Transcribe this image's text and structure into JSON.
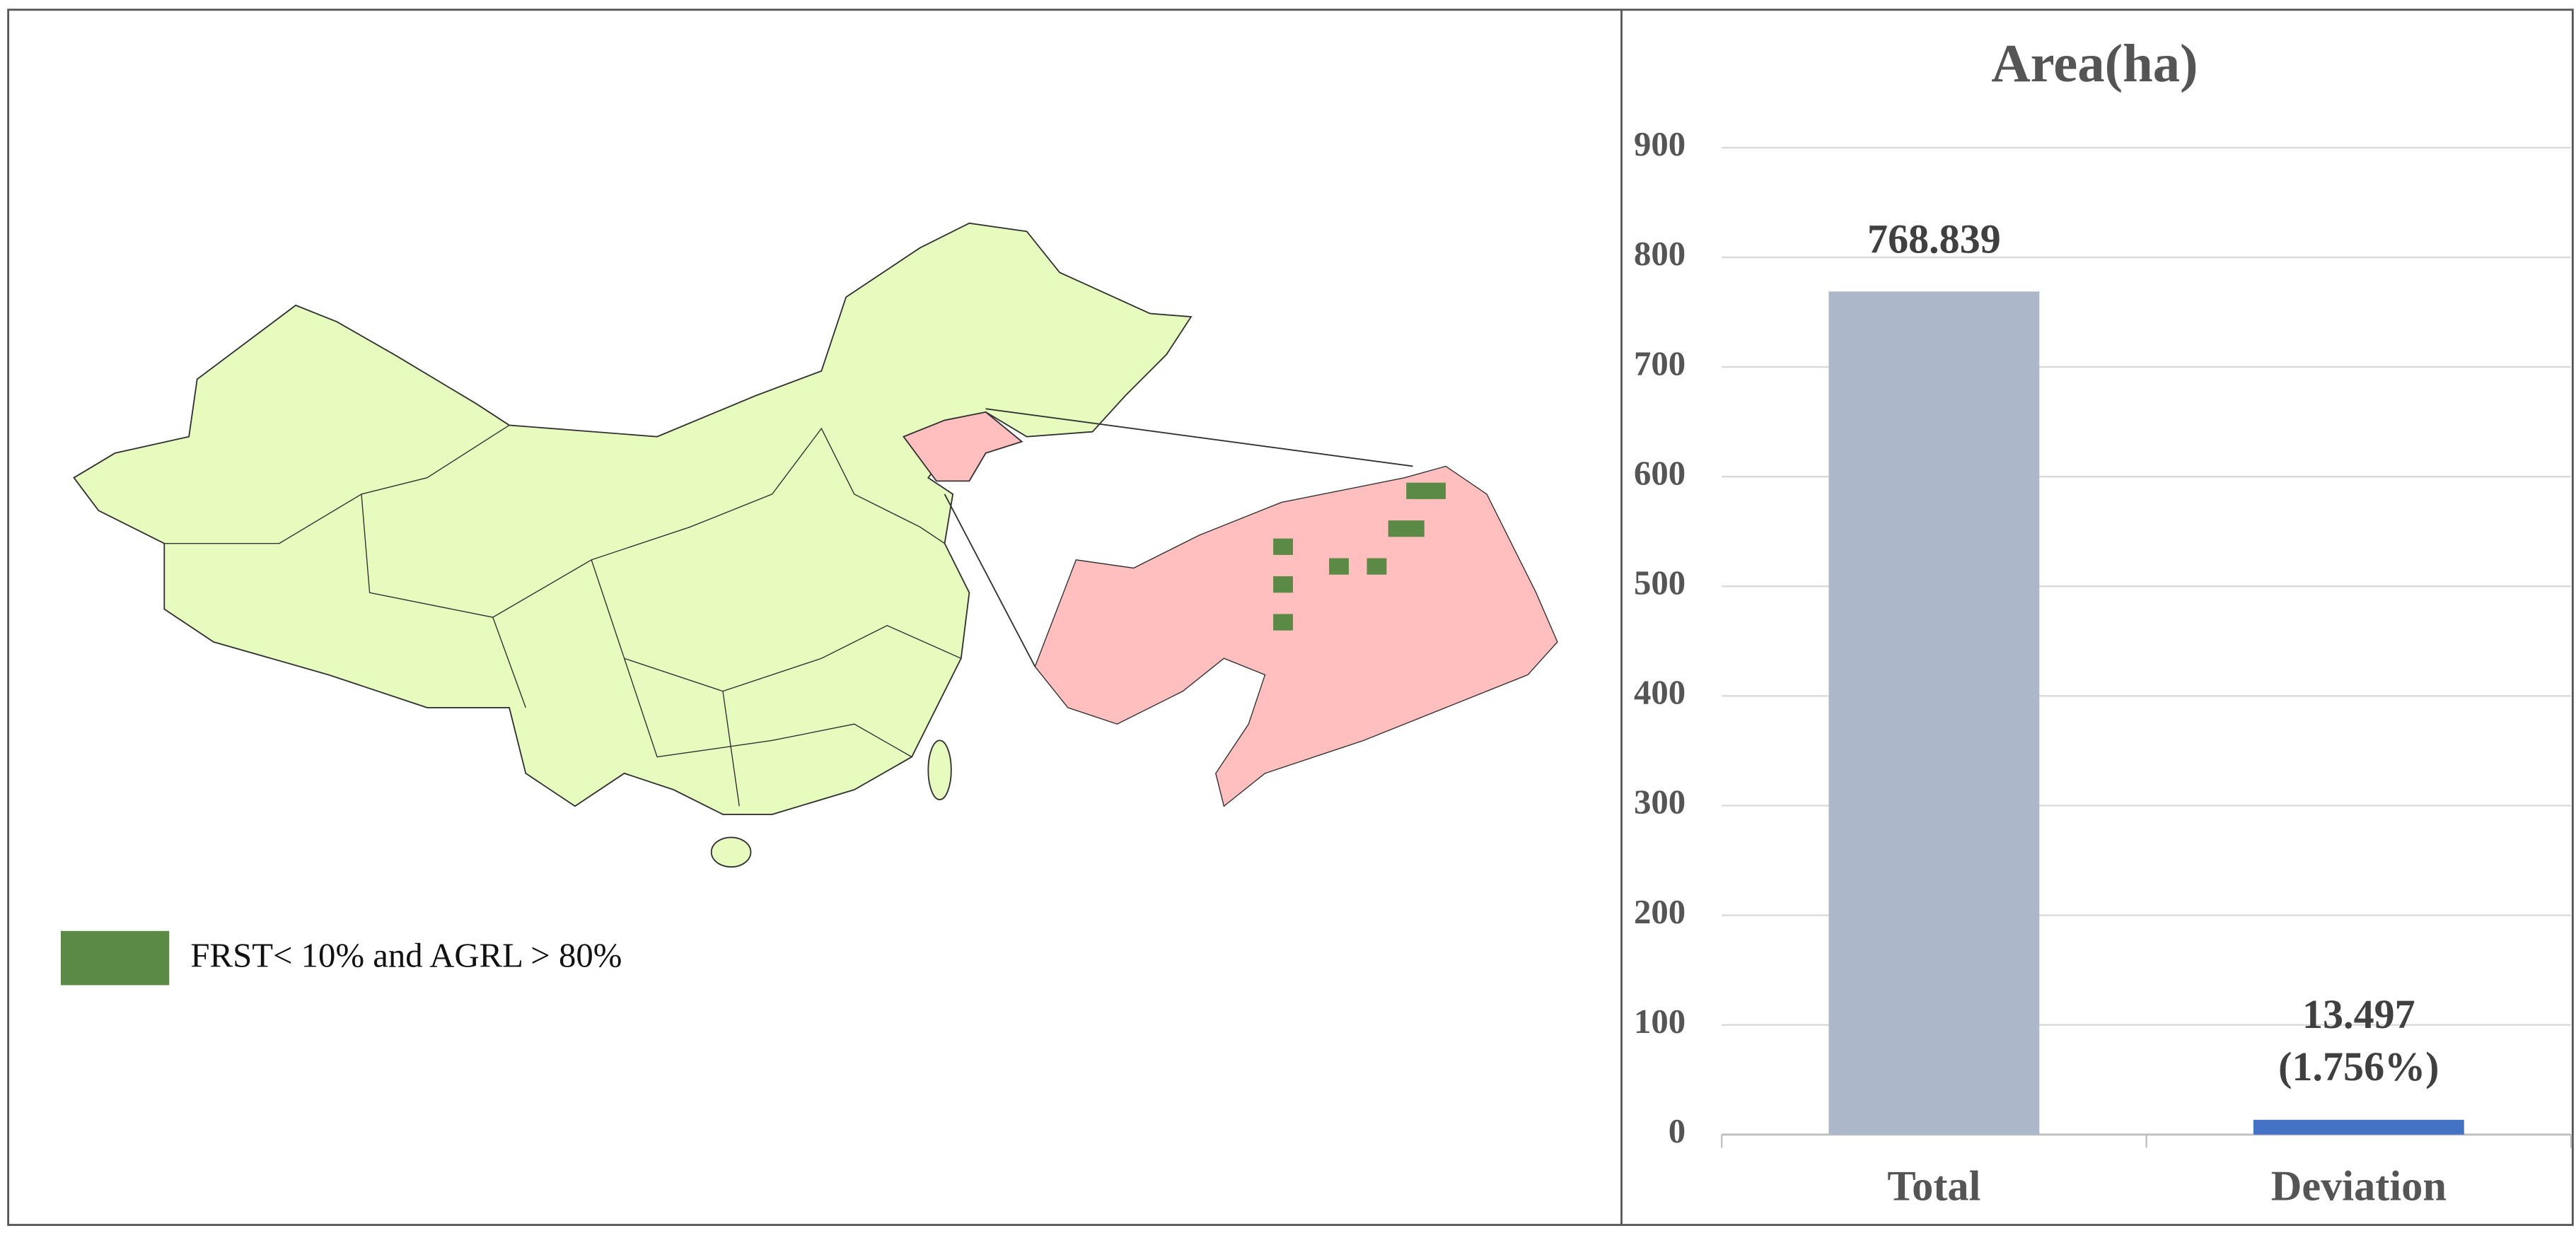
{
  "chart_data": {
    "type": "bar",
    "title": "Area(ha)",
    "categories": [
      "Total",
      "Deviation"
    ],
    "values": [
      768.839,
      13.497
    ],
    "value_labels": [
      "768.839",
      "13.497 (1.756%)"
    ],
    "colors": [
      "#adb7ca",
      "#4472c4"
    ],
    "ylim": [
      0,
      900
    ],
    "yticks": [
      0,
      100,
      200,
      300,
      400,
      500,
      600,
      700,
      800,
      900
    ],
    "grid": true
  },
  "map": {
    "legend": "FRST< 10% and AGRL > 80%"
  }
}
